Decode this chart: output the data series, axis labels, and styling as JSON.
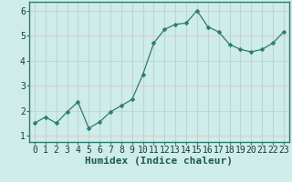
{
  "x": [
    0,
    1,
    2,
    3,
    4,
    5,
    6,
    7,
    8,
    9,
    10,
    11,
    12,
    13,
    14,
    15,
    16,
    17,
    18,
    19,
    20,
    21,
    22,
    23
  ],
  "y": [
    1.5,
    1.75,
    1.5,
    1.95,
    2.35,
    1.3,
    1.55,
    1.95,
    2.2,
    2.45,
    3.45,
    4.7,
    5.25,
    5.45,
    5.5,
    6.0,
    5.35,
    5.15,
    4.65,
    4.45,
    4.35,
    4.45,
    4.7,
    5.15
  ],
  "line_color": "#2d7b6e",
  "marker": "D",
  "marker_size": 2.5,
  "bg_color": "#ceecea",
  "grid_color_h": "#e8c8c8",
  "grid_color_v": "#b8d8d5",
  "xlabel": "Humidex (Indice chaleur)",
  "xlabel_fontsize": 8,
  "tick_fontsize": 7,
  "xlim": [
    -0.5,
    23.5
  ],
  "ylim": [
    0.75,
    6.35
  ],
  "yticks": [
    1,
    2,
    3,
    4,
    5,
    6
  ],
  "xticks": [
    0,
    1,
    2,
    3,
    4,
    5,
    6,
    7,
    8,
    9,
    10,
    11,
    12,
    13,
    14,
    15,
    16,
    17,
    18,
    19,
    20,
    21,
    22,
    23
  ]
}
